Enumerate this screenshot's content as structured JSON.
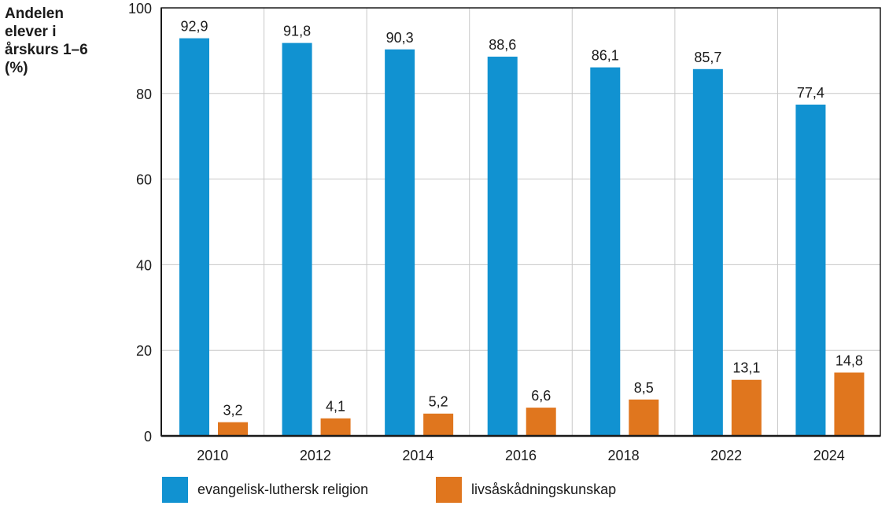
{
  "chart_data": {
    "type": "bar",
    "title": "",
    "ylabel": "Andelen elever i årskurs 1–6 (%)",
    "ylabel_lines": [
      "Andelen",
      "elever i",
      "årskurs 1–6",
      "(%)"
    ],
    "xlabel": "",
    "categories": [
      "2010",
      "2012",
      "2014",
      "2016",
      "2018",
      "2022",
      "2024"
    ],
    "ylim": [
      0,
      100
    ],
    "yticks": [
      0,
      20,
      40,
      60,
      80,
      100
    ],
    "grid": true,
    "legend_position": "bottom",
    "series": [
      {
        "name": "evangelisk-luthersk religion",
        "color": "#1192d1",
        "values": [
          92.9,
          91.8,
          90.3,
          88.6,
          86.1,
          85.7,
          77.4
        ],
        "labels": [
          "92,9",
          "91,8",
          "90,3",
          "88,6",
          "86,1",
          "85,7",
          "77,4"
        ]
      },
      {
        "name": "livsåskådningskunskap",
        "color": "#e0761e",
        "values": [
          3.2,
          4.1,
          5.2,
          6.6,
          8.5,
          13.1,
          14.8
        ],
        "labels": [
          "3,2",
          "4,1",
          "5,2",
          "6,6",
          "8,5",
          "13,1",
          "14,8"
        ]
      }
    ]
  }
}
